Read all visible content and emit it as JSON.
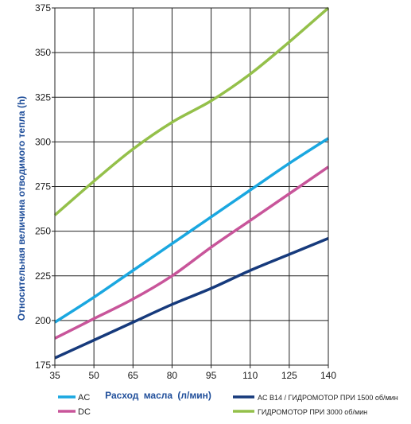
{
  "chart_data": {
    "type": "line",
    "title": "",
    "xlabel": "Расход масла (л/мин)",
    "ylabel": "Относительная величина отводимого тепла (h)",
    "xlim": [
      35,
      140
    ],
    "ylim": [
      175,
      375
    ],
    "x_ticks": [
      35,
      50,
      65,
      80,
      95,
      110,
      125,
      140
    ],
    "y_ticks": [
      175,
      200,
      225,
      250,
      275,
      300,
      325,
      350,
      375
    ],
    "grid": true,
    "legend_position": "bottom",
    "series": [
      {
        "name": "AC",
        "color": "#1aa7e0",
        "x": [
          35,
          50,
          65,
          80,
          95,
          110,
          125,
          140
        ],
        "y": [
          199,
          213,
          228,
          243,
          258,
          273,
          288,
          302
        ]
      },
      {
        "name": "DC",
        "color": "#c8559a",
        "x": [
          35,
          50,
          65,
          80,
          95,
          110,
          125,
          140
        ],
        "y": [
          190,
          201,
          212,
          225,
          241,
          256,
          271,
          286
        ]
      },
      {
        "name": "AC B14 / ГИДРОМОТОР ПРИ 1500 об/мин",
        "color": "#163a7c",
        "x": [
          35,
          50,
          65,
          80,
          95,
          110,
          125,
          140
        ],
        "y": [
          179,
          189,
          199,
          209,
          218,
          228,
          237,
          246
        ]
      },
      {
        "name": "ГИДРОМОТОР ПРИ 3000 об/мин",
        "color": "#94c04a",
        "x": [
          35,
          50,
          65,
          80,
          95,
          110,
          125,
          140
        ],
        "y": [
          259,
          278,
          296,
          311,
          323,
          338,
          356,
          375
        ]
      }
    ]
  }
}
